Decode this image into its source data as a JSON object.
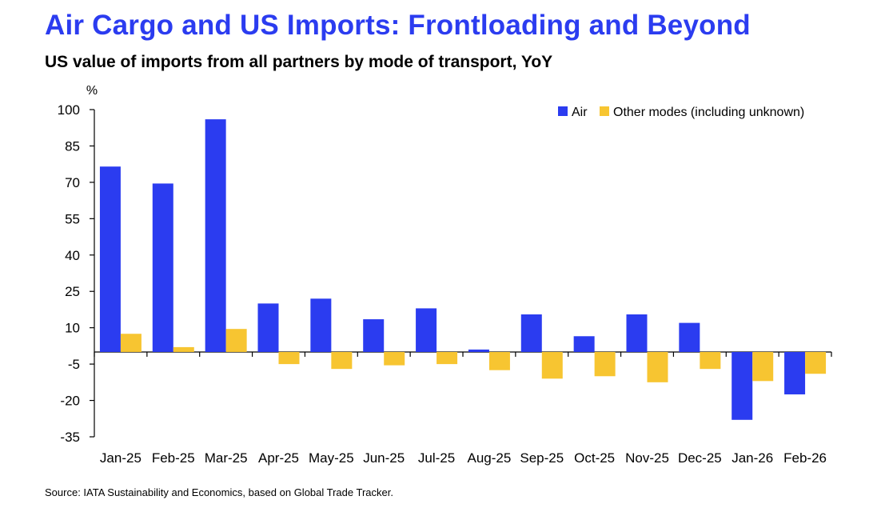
{
  "title": "Air Cargo and US Imports: Frontloading and Beyond",
  "subtitle": "US value of imports from all partners by mode of transport, YoY",
  "source": "Source: IATA Sustainability and Economics, based on Global Trade Tracker.",
  "colors": {
    "air": "#2b3cf0",
    "other": "#f7c531",
    "title": "#2b3cf0"
  },
  "chart_data": {
    "type": "bar",
    "title": "US value of imports from all partners by mode of transport, YoY",
    "ylabel": "%",
    "xlabel": "",
    "ylim": [
      -35,
      100
    ],
    "yticks": [
      100,
      85,
      70,
      55,
      40,
      25,
      10,
      -5,
      -20,
      -35
    ],
    "ytick_labels": [
      "100",
      "85",
      "70",
      "55",
      "40",
      "25",
      "10",
      "-5",
      "-20",
      "-35"
    ],
    "grid": false,
    "legend_position": "top-right",
    "categories": [
      "Jan-25",
      "Feb-25",
      "Mar-25",
      "Apr-25",
      "May-25",
      "Jun-25",
      "Jul-25",
      "Aug-25",
      "Sep-25",
      "Oct-25",
      "Nov-25",
      "Dec-25",
      "Jan-26",
      "Feb-26"
    ],
    "series": [
      {
        "name": "Air",
        "color": "#2b3cf0",
        "values": [
          76.5,
          69.5,
          96,
          20,
          22,
          13.5,
          18,
          1,
          15.5,
          6.5,
          15.5,
          12,
          -28,
          -17.5
        ]
      },
      {
        "name": "Other modes (including unknown)",
        "color": "#f7c531",
        "values": [
          7.5,
          2,
          9.5,
          -5,
          -7,
          -5.5,
          -5,
          -7.5,
          -11,
          -10,
          -12.5,
          -7,
          -12,
          -9
        ]
      }
    ]
  }
}
